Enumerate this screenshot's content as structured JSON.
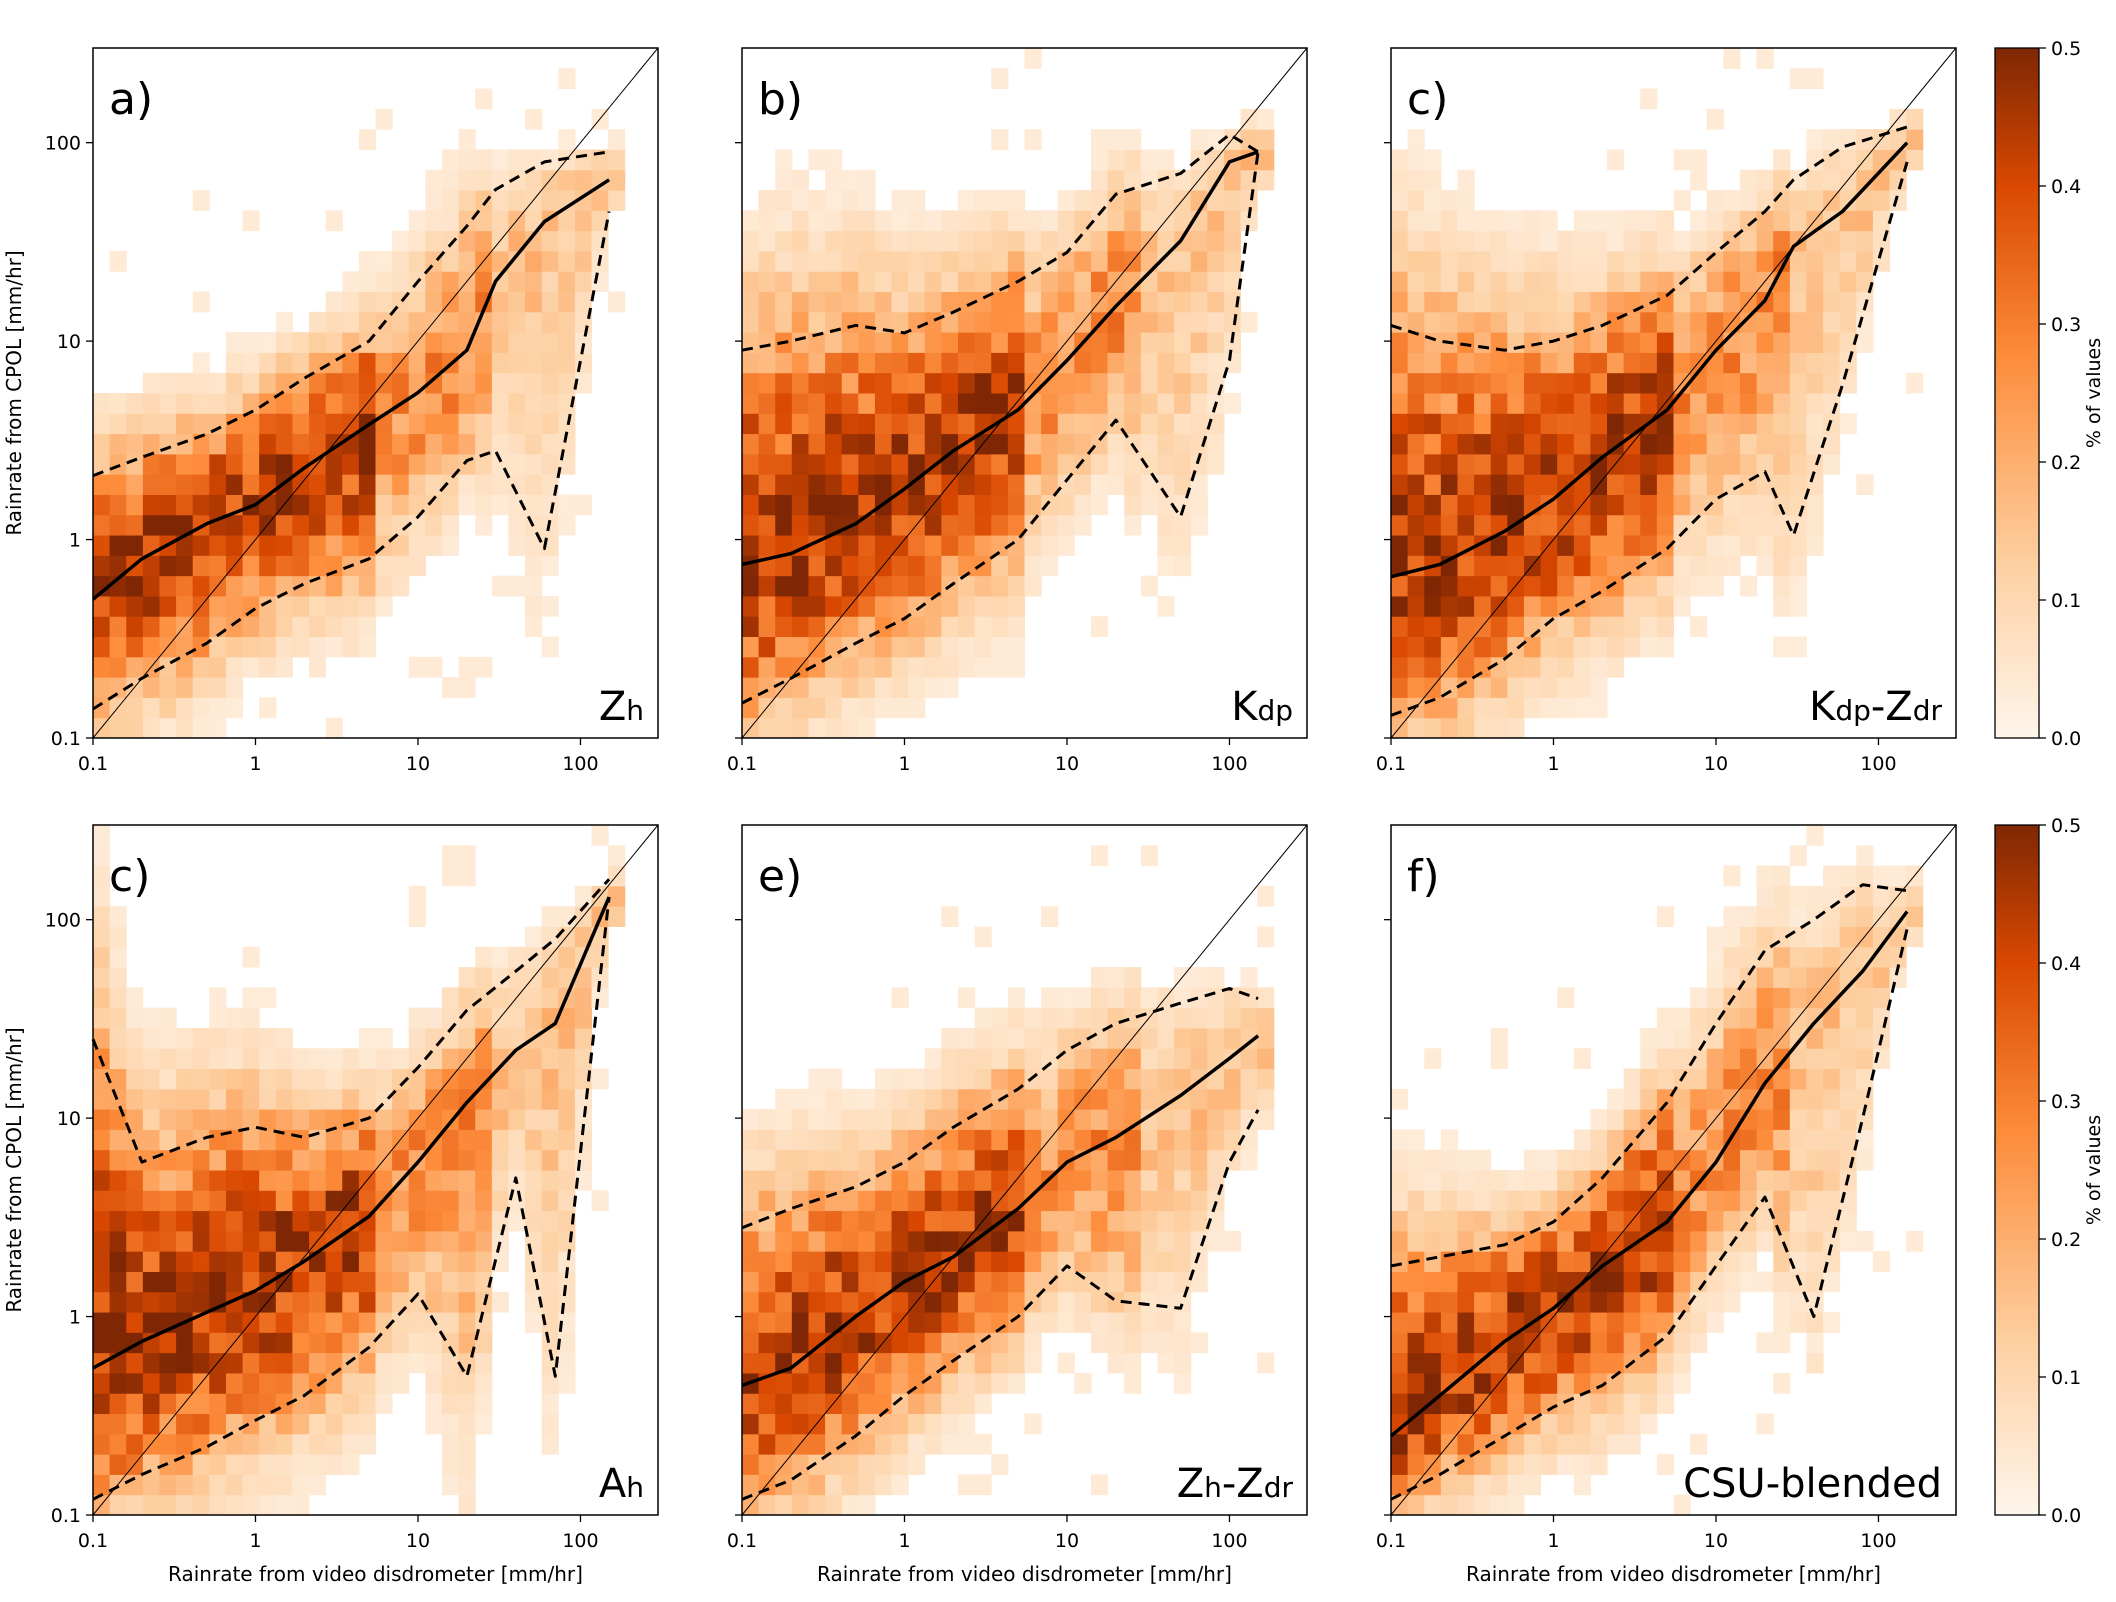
{
  "figure": {
    "colorbar": {
      "label": "% of values",
      "range": [
        0.0,
        0.5
      ],
      "ticks": [
        "0.0",
        "0.1",
        "0.2",
        "0.3",
        "0.4",
        "0.5"
      ],
      "colors": [
        "#fff5eb",
        "#fdd0a2",
        "#fd8d3c",
        "#d94801",
        "#7f2704"
      ]
    },
    "line_colors": {
      "median": "#000000",
      "percentile": "#000000",
      "one_to_one": "#000000"
    }
  },
  "chart_data": [
    {
      "type": "heatmap",
      "panel_label": "a)",
      "estimator_main": "Z",
      "estimator_sub": "h",
      "xlabel": "",
      "ylabel": "Rainrate from CPOL [mm/hr]",
      "x_scale": "log",
      "y_scale": "log",
      "xlim": [
        0.1,
        300
      ],
      "ylim": [
        0.1,
        300
      ],
      "x_ticks": [
        "0.1",
        "1",
        "10",
        "100"
      ],
      "y_ticks": [
        "0.1",
        "1",
        "10",
        "100"
      ],
      "median_x": [
        0.1,
        0.2,
        0.5,
        1,
        2,
        5,
        10,
        20,
        30,
        60,
        150
      ],
      "median_y": [
        0.5,
        0.8,
        1.2,
        1.5,
        2.3,
        3.8,
        5.5,
        9,
        20,
        40,
        65
      ],
      "p_low_y": [
        0.14,
        0.2,
        0.3,
        0.45,
        0.6,
        0.8,
        1.3,
        2.5,
        2.8,
        0.9,
        45
      ],
      "p_high_y": [
        2.1,
        2.6,
        3.4,
        4.5,
        6.5,
        10,
        20,
        38,
        58,
        80,
        90
      ]
    },
    {
      "type": "heatmap",
      "panel_label": "b)",
      "estimator_main": "K",
      "estimator_sub": "dp",
      "xlabel": "",
      "ylabel": "",
      "x_scale": "log",
      "y_scale": "log",
      "xlim": [
        0.1,
        300
      ],
      "ylim": [
        0.1,
        300
      ],
      "x_ticks": [
        "0.1",
        "1",
        "10",
        "100"
      ],
      "y_ticks": [],
      "median_x": [
        0.1,
        0.2,
        0.5,
        1,
        2,
        5,
        10,
        20,
        50,
        100,
        150
      ],
      "median_y": [
        0.75,
        0.85,
        1.2,
        1.8,
        2.8,
        4.5,
        8,
        15,
        32,
        80,
        90
      ],
      "p_low_y": [
        0.15,
        0.2,
        0.3,
        0.4,
        0.6,
        1,
        2,
        4,
        1.3,
        8,
        90
      ],
      "p_high_y": [
        9,
        10,
        12,
        11,
        14,
        20,
        28,
        55,
        70,
        110,
        90
      ]
    },
    {
      "type": "heatmap",
      "panel_label": "c)",
      "estimator_main": "K",
      "estimator_sub": "dp",
      "estimator_main2": "-Z",
      "estimator_sub2": "dr",
      "xlabel": "",
      "ylabel": "",
      "x_scale": "log",
      "y_scale": "log",
      "xlim": [
        0.1,
        300
      ],
      "ylim": [
        0.1,
        300
      ],
      "x_ticks": [
        "0.1",
        "1",
        "10",
        "100"
      ],
      "y_ticks": [],
      "median_x": [
        0.1,
        0.2,
        0.5,
        1,
        2,
        5,
        10,
        20,
        30,
        60,
        150
      ],
      "median_y": [
        0.65,
        0.75,
        1.1,
        1.6,
        2.6,
        4.5,
        9,
        16,
        30,
        45,
        100
      ],
      "p_low_y": [
        0.13,
        0.16,
        0.25,
        0.4,
        0.55,
        0.9,
        1.6,
        2.2,
        1.05,
        6,
        80
      ],
      "p_high_y": [
        12,
        10,
        9,
        10,
        12,
        17,
        28,
        45,
        65,
        95,
        120
      ]
    },
    {
      "type": "heatmap",
      "panel_label": "c)",
      "estimator_main": "A",
      "estimator_sub": "h",
      "xlabel": "Rainrate from video disdrometer [mm/hr]",
      "ylabel": "Rainrate from CPOL [mm/hr]",
      "x_scale": "log",
      "y_scale": "log",
      "xlim": [
        0.1,
        300
      ],
      "ylim": [
        0.1,
        300
      ],
      "x_ticks": [
        "0.1",
        "1",
        "10",
        "100"
      ],
      "y_ticks": [
        "0.1",
        "1",
        "10",
        "100"
      ],
      "median_x": [
        0.1,
        0.2,
        0.5,
        1,
        2,
        5,
        10,
        20,
        40,
        70,
        150
      ],
      "median_y": [
        0.55,
        0.75,
        1.05,
        1.35,
        1.9,
        3.2,
        6,
        12,
        22,
        30,
        130
      ],
      "p_low_y": [
        0.12,
        0.16,
        0.22,
        0.3,
        0.4,
        0.7,
        1.3,
        0.5,
        5,
        0.5,
        130
      ],
      "p_high_y": [
        25,
        6,
        8,
        9,
        8,
        10,
        18,
        35,
        55,
        80,
        160
      ]
    },
    {
      "type": "heatmap",
      "panel_label": "e)",
      "estimator_main": "Z",
      "estimator_sub": "h",
      "estimator_main2": "-Z",
      "estimator_sub2": "dr",
      "xlabel": "Rainrate from video disdrometer [mm/hr]",
      "ylabel": "",
      "x_scale": "log",
      "y_scale": "log",
      "xlim": [
        0.1,
        300
      ],
      "ylim": [
        0.1,
        300
      ],
      "x_ticks": [
        "0.1",
        "1",
        "10",
        "100"
      ],
      "y_ticks": [],
      "median_x": [
        0.1,
        0.2,
        0.5,
        1,
        2,
        5,
        10,
        20,
        50,
        100,
        150
      ],
      "median_y": [
        0.45,
        0.55,
        1,
        1.5,
        2,
        3.5,
        6,
        8,
        13,
        20,
        26
      ],
      "p_low_y": [
        0.12,
        0.15,
        0.25,
        0.4,
        0.6,
        1,
        1.8,
        1.2,
        1.1,
        6,
        11
      ],
      "p_high_y": [
        2.8,
        3.5,
        4.5,
        6,
        9,
        14,
        22,
        30,
        38,
        45,
        40
      ]
    },
    {
      "type": "heatmap",
      "panel_label": "f)",
      "estimator_main": "CSU-blended",
      "estimator_sub": "",
      "xlabel": "Rainrate from video disdrometer [mm/hr]",
      "ylabel": "",
      "x_scale": "log",
      "y_scale": "log",
      "xlim": [
        0.1,
        300
      ],
      "ylim": [
        0.1,
        300
      ],
      "x_ticks": [
        "0.1",
        "1",
        "10",
        "100"
      ],
      "y_ticks": [],
      "median_x": [
        0.1,
        0.2,
        0.5,
        1,
        2,
        5,
        10,
        20,
        40,
        80,
        150
      ],
      "median_y": [
        0.25,
        0.4,
        0.75,
        1.1,
        1.8,
        3,
        6,
        15,
        30,
        55,
        110
      ],
      "p_low_y": [
        0.12,
        0.16,
        0.25,
        0.35,
        0.45,
        0.8,
        1.8,
        4,
        1,
        10,
        90
      ],
      "p_high_y": [
        1.8,
        2,
        2.3,
        3,
        5,
        12,
        30,
        70,
        100,
        150,
        140
      ]
    }
  ]
}
